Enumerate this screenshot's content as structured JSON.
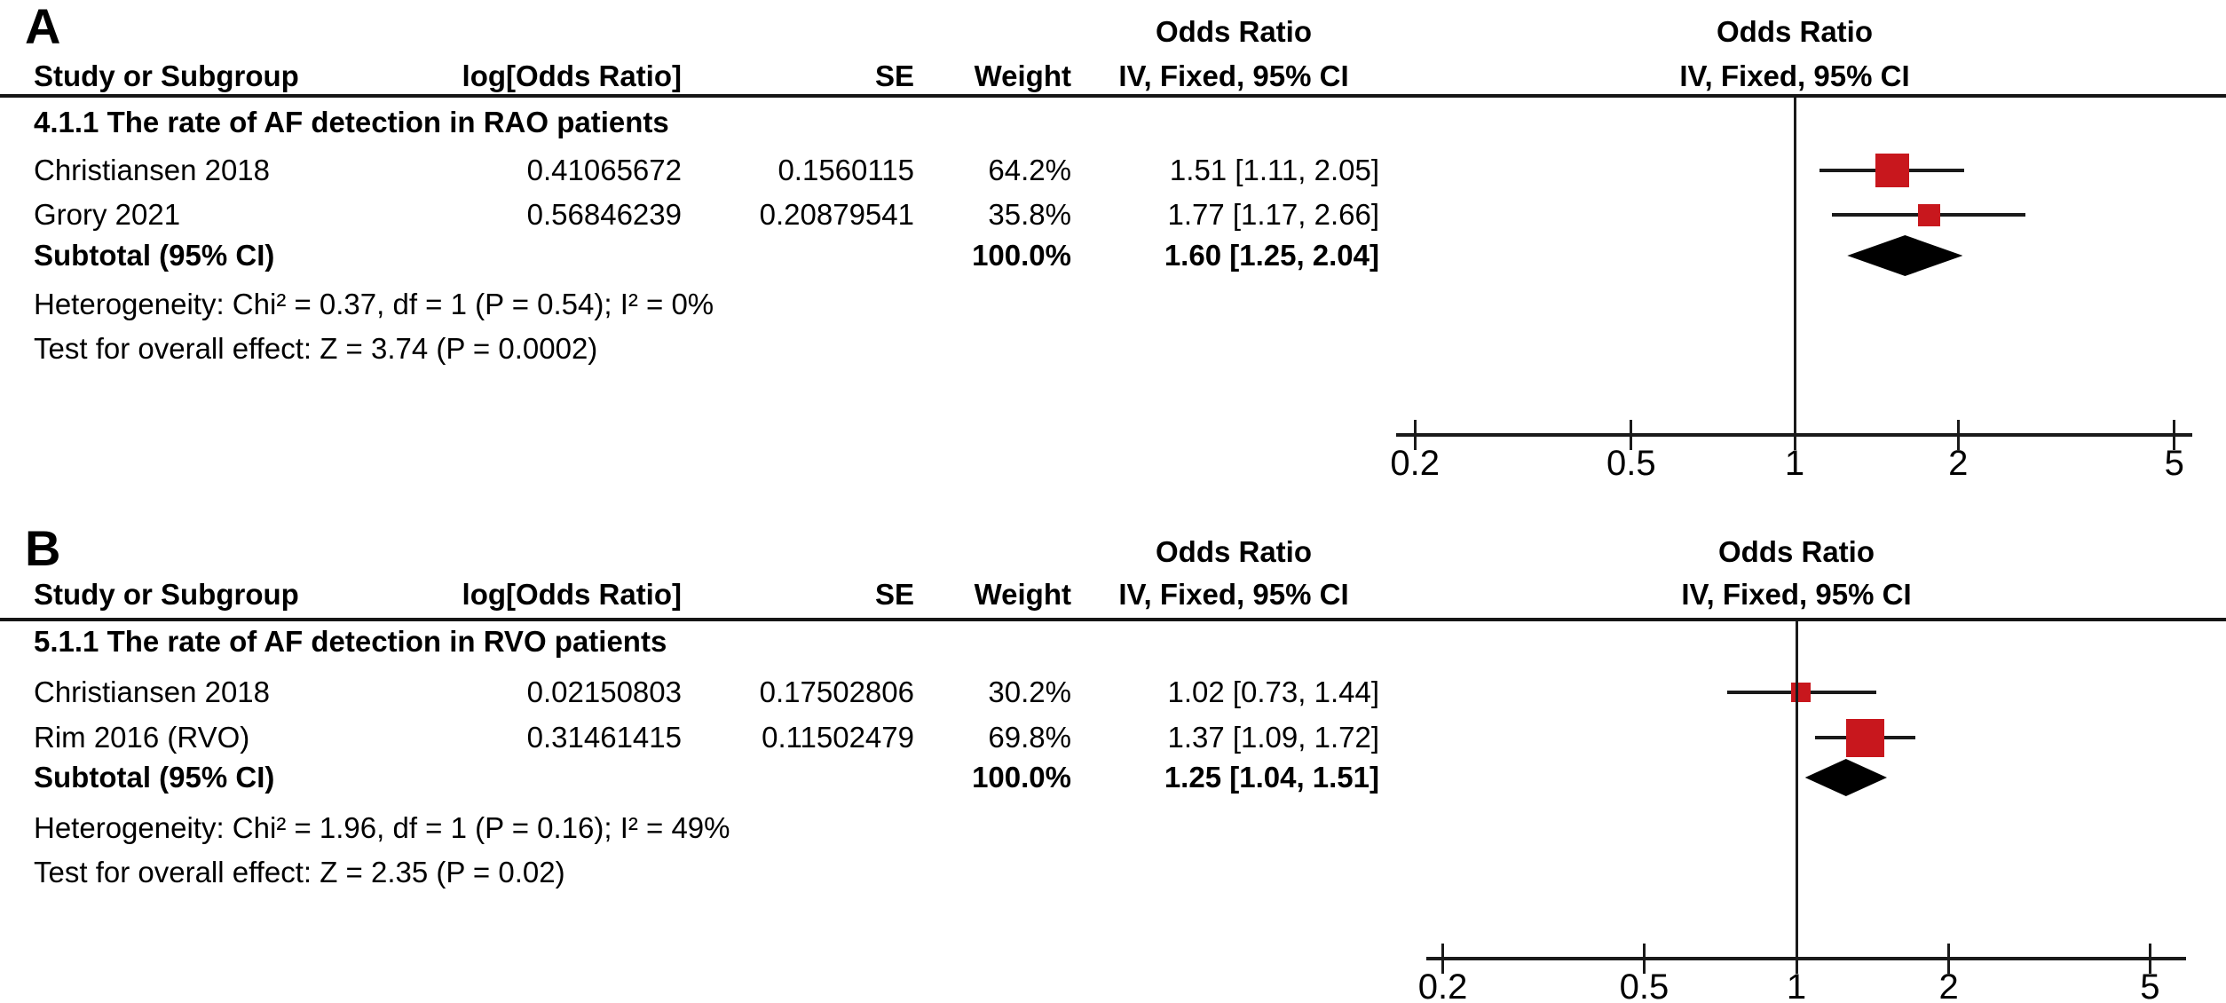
{
  "colors": {
    "marker_red": "#c8171d",
    "diamond_black": "#000000",
    "line_black": "#1a1a1a"
  },
  "chart_data": [
    {
      "type": "forest",
      "panel_label": "A",
      "headers": {
        "stat_group_title": "Odds Ratio",
        "plot_group_title": "Odds Ratio",
        "study": "Study or Subgroup",
        "log_or": "log[Odds Ratio]",
        "se": "SE",
        "weight": "Weight",
        "stat_ci": "IV, Fixed, 95% CI",
        "plot_ci": "IV, Fixed, 95% CI"
      },
      "subgroup_title": "4.1.1 The rate of AF detection in RAO patients",
      "studies": [
        {
          "name": "Christiansen 2018",
          "log_odds_ratio": "0.41065672",
          "se": "0.1560115",
          "weight": "64.2%",
          "weight_pct": 64.2,
          "or_ci_text": "1.51 [1.11, 2.05]",
          "or": 1.51,
          "ci_low": 1.11,
          "ci_high": 2.05
        },
        {
          "name": "Grory 2021",
          "log_odds_ratio": "0.56846239",
          "se": "0.20879541",
          "weight": "35.8%",
          "weight_pct": 35.8,
          "or_ci_text": "1.77 [1.17, 2.66]",
          "or": 1.77,
          "ci_low": 1.17,
          "ci_high": 2.66
        }
      ],
      "subtotal": {
        "label": "Subtotal (95% CI)",
        "weight": "100.0%",
        "or_ci_text": "1.60 [1.25, 2.04]",
        "or": 1.6,
        "ci_low": 1.25,
        "ci_high": 2.04
      },
      "heterogeneity": "Heterogeneity: Chi² = 0.37, df = 1 (P = 0.54); I² = 0%",
      "overall_effect": "Test for overall effect: Z = 3.74 (P = 0.0002)",
      "axis": {
        "scale": "log",
        "ticks": [
          0.2,
          0.5,
          1,
          2,
          5
        ],
        "xlim": [
          0.15,
          5.5
        ]
      }
    },
    {
      "type": "forest",
      "panel_label": "B",
      "headers": {
        "stat_group_title": "Odds Ratio",
        "plot_group_title": "Odds Ratio",
        "study": "Study or Subgroup",
        "log_or": "log[Odds Ratio]",
        "se": "SE",
        "weight": "Weight",
        "stat_ci": "IV, Fixed, 95% CI",
        "plot_ci": "IV, Fixed, 95% CI"
      },
      "subgroup_title": "5.1.1 The rate of AF detection in RVO patients",
      "studies": [
        {
          "name": "Christiansen 2018",
          "log_odds_ratio": "0.02150803",
          "se": "0.17502806",
          "weight": "30.2%",
          "weight_pct": 30.2,
          "or_ci_text": "1.02 [0.73, 1.44]",
          "or": 1.02,
          "ci_low": 0.73,
          "ci_high": 1.44
        },
        {
          "name": "Rim 2016 (RVO)",
          "log_odds_ratio": "0.31461415",
          "se": "0.11502479",
          "weight": "69.8%",
          "weight_pct": 69.8,
          "or_ci_text": "1.37 [1.09, 1.72]",
          "or": 1.37,
          "ci_low": 1.09,
          "ci_high": 1.72
        }
      ],
      "subtotal": {
        "label": "Subtotal (95% CI)",
        "weight": "100.0%",
        "or_ci_text": "1.25 [1.04, 1.51]",
        "or": 1.25,
        "ci_low": 1.04,
        "ci_high": 1.51
      },
      "heterogeneity": "Heterogeneity: Chi² = 1.96, df = 1 (P = 0.16); I² = 49%",
      "overall_effect": "Test for overall effect: Z = 2.35 (P = 0.02)",
      "axis": {
        "scale": "log",
        "ticks": [
          0.2,
          0.5,
          1,
          2,
          5
        ],
        "xlim": [
          0.15,
          5.5
        ]
      }
    }
  ]
}
